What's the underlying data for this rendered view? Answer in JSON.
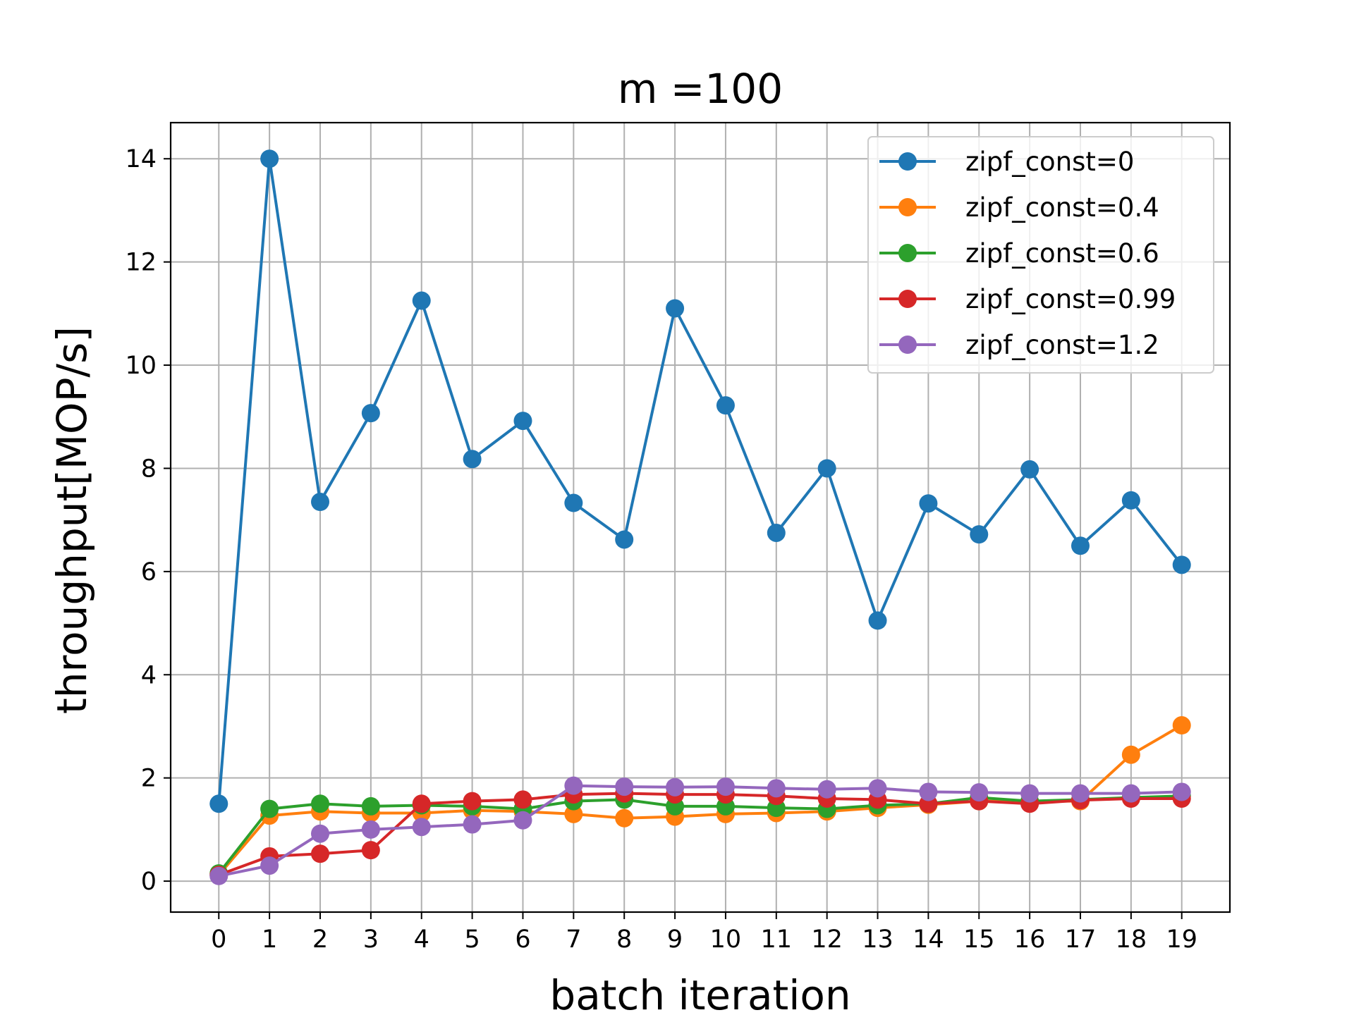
{
  "chart_data": {
    "type": "line",
    "title": "m =100",
    "xlabel": "batch iteration",
    "ylabel": "throughput[MOP/s]",
    "x": [
      0,
      1,
      2,
      3,
      4,
      5,
      6,
      7,
      8,
      9,
      10,
      11,
      12,
      13,
      14,
      15,
      16,
      17,
      18,
      19
    ],
    "xticks": [
      "0",
      "1",
      "2",
      "3",
      "4",
      "5",
      "6",
      "7",
      "8",
      "9",
      "10",
      "11",
      "12",
      "13",
      "14",
      "15",
      "16",
      "17",
      "18",
      "19"
    ],
    "yticks": [
      0,
      2,
      4,
      6,
      8,
      10,
      12,
      14
    ],
    "xlim": [
      -0.95,
      19.95
    ],
    "ylim": [
      -0.6,
      14.7
    ],
    "grid": true,
    "legend_position": "top-right",
    "series": [
      {
        "name": "zipf_const=0",
        "color": "#1f77b4",
        "values": [
          1.5,
          14.0,
          7.35,
          9.07,
          11.25,
          8.18,
          8.92,
          7.33,
          6.62,
          11.1,
          9.22,
          6.75,
          8.0,
          5.05,
          7.32,
          6.72,
          7.98,
          6.5,
          7.38,
          6.13
        ]
      },
      {
        "name": "zipf_const=0.4",
        "color": "#ff7f0e",
        "values": [
          0.12,
          1.27,
          1.35,
          1.32,
          1.32,
          1.37,
          1.35,
          1.3,
          1.22,
          1.25,
          1.3,
          1.32,
          1.35,
          1.42,
          1.48,
          1.55,
          1.55,
          1.55,
          2.45,
          3.02
        ]
      },
      {
        "name": "zipf_const=0.6",
        "color": "#2ca02c",
        "values": [
          0.15,
          1.4,
          1.5,
          1.45,
          1.47,
          1.45,
          1.4,
          1.55,
          1.58,
          1.45,
          1.45,
          1.42,
          1.4,
          1.47,
          1.5,
          1.62,
          1.55,
          1.58,
          1.62,
          1.65
        ]
      },
      {
        "name": "zipf_const=0.99",
        "color": "#d62728",
        "values": [
          0.12,
          0.48,
          0.53,
          0.6,
          1.5,
          1.55,
          1.58,
          1.68,
          1.7,
          1.68,
          1.68,
          1.65,
          1.6,
          1.58,
          1.5,
          1.55,
          1.5,
          1.57,
          1.6,
          1.6
        ]
      },
      {
        "name": "zipf_const=1.2",
        "color": "#9467bd",
        "values": [
          0.1,
          0.3,
          0.92,
          1.0,
          1.05,
          1.1,
          1.18,
          1.85,
          1.83,
          1.82,
          1.83,
          1.8,
          1.78,
          1.8,
          1.73,
          1.72,
          1.7,
          1.7,
          1.7,
          1.73
        ]
      }
    ]
  }
}
